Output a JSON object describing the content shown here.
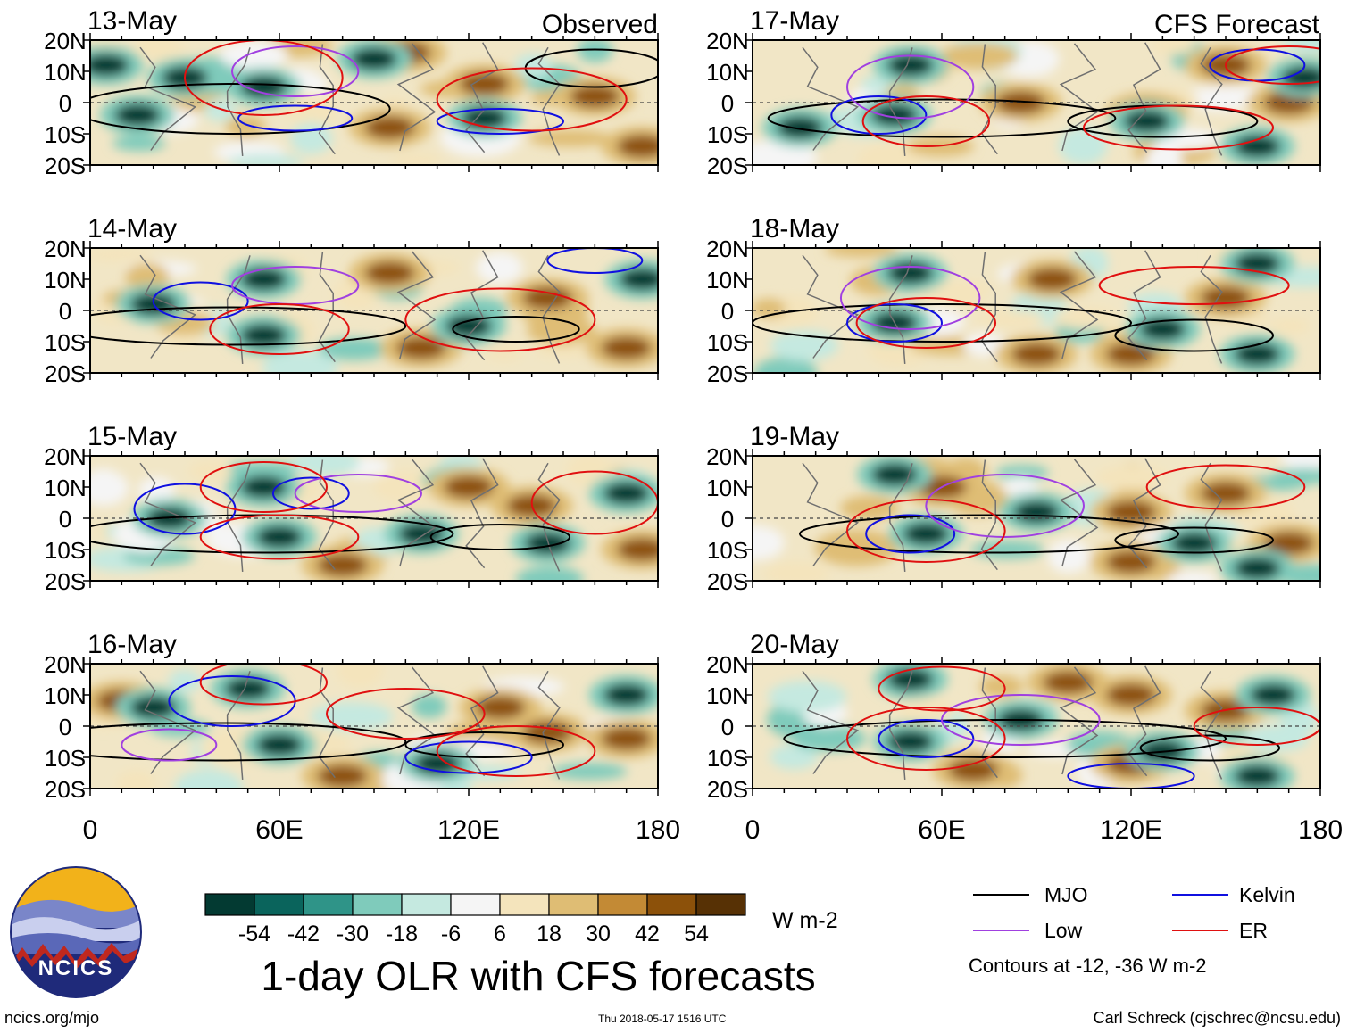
{
  "title": "1-day OLR with CFS forecasts",
  "column_headers": {
    "observed": "Observed",
    "forecast": "CFS Forecast"
  },
  "footer": {
    "site": "ncics.org/mjo",
    "timestamp": "Thu 2018-05-17 1516 UTC",
    "credit": "Carl Schreck (cjschrec@ncsu.edu)",
    "logo_text": "NCICS"
  },
  "colorbar": {
    "unit": "W m-2",
    "colors": [
      "#033a32",
      "#0a645c",
      "#2f9488",
      "#7fcbbb",
      "#c5e9e0",
      "#f5f5f5",
      "#f4e4bc",
      "#dfbd74",
      "#c38a35",
      "#8c510a",
      "#573105"
    ],
    "tick_labels": [
      "-54",
      "-42",
      "-30",
      "-18",
      "-6",
      "6",
      "18",
      "30",
      "42",
      "54"
    ]
  },
  "legend": {
    "entries": [
      {
        "label": "MJO",
        "color": "#000000"
      },
      {
        "label": "Kelvin",
        "color": "#1010e0"
      },
      {
        "label": "Low",
        "color": "#a040e0"
      },
      {
        "label": "ER",
        "color": "#e01010"
      }
    ],
    "note": "Contours at -12, -36 W m-2"
  },
  "chart_data": {
    "type": "heatmap",
    "variable": "OLR anomaly",
    "lon_range": [
      0,
      180
    ],
    "lat_range": [
      -20,
      20
    ],
    "x_tick_labels": [
      "0",
      "60E",
      "120E",
      "180"
    ],
    "y_tick_labels": [
      "20N",
      "10N",
      "0",
      "10S",
      "20S"
    ],
    "contour_levels": [
      -12,
      -36
    ],
    "panels": [
      {
        "date": "13-May",
        "column": "Observed",
        "wet": [
          [
            30,
            8
          ],
          [
            55,
            5
          ],
          [
            15,
            -4
          ],
          [
            125,
            -5
          ],
          [
            5,
            12
          ],
          [
            90,
            14
          ]
        ],
        "dry": [
          [
            95,
            -8
          ],
          [
            125,
            6
          ],
          [
            160,
            2
          ],
          [
            175,
            -14
          ],
          [
            100,
            16
          ]
        ],
        "mjo": [
          [
            45,
            -2,
            50,
            8
          ],
          [
            160,
            11,
            22,
            6
          ]
        ],
        "kelvin": [
          [
            65,
            -5,
            18,
            4
          ],
          [
            130,
            -6,
            20,
            4
          ]
        ],
        "low": [
          [
            65,
            10,
            20,
            8
          ]
        ],
        "er": [
          [
            55,
            8,
            25,
            12
          ],
          [
            140,
            1,
            30,
            10
          ]
        ]
      },
      {
        "date": "14-May",
        "column": "Observed",
        "wet": [
          [
            20,
            2
          ],
          [
            55,
            -8
          ],
          [
            55,
            10
          ],
          [
            120,
            -5
          ],
          [
            175,
            10
          ]
        ],
        "dry": [
          [
            95,
            12
          ],
          [
            145,
            4
          ],
          [
            105,
            -12
          ],
          [
            170,
            -12
          ]
        ],
        "mjo": [
          [
            45,
            -5,
            55,
            6
          ],
          [
            135,
            -6,
            20,
            4
          ]
        ],
        "kelvin": [
          [
            35,
            3,
            15,
            6
          ],
          [
            160,
            16,
            15,
            4
          ]
        ],
        "low": [
          [
            65,
            8,
            20,
            6
          ]
        ],
        "er": [
          [
            60,
            -6,
            22,
            8
          ],
          [
            130,
            -3,
            30,
            10
          ]
        ]
      },
      {
        "date": "15-May",
        "column": "Observed",
        "wet": [
          [
            25,
            0
          ],
          [
            55,
            10
          ],
          [
            105,
            -5
          ],
          [
            60,
            -6
          ],
          [
            170,
            8
          ],
          [
            145,
            -8
          ]
        ],
        "dry": [
          [
            120,
            10
          ],
          [
            140,
            4
          ],
          [
            80,
            -15
          ],
          [
            175,
            -10
          ]
        ],
        "mjo": [
          [
            55,
            -5,
            60,
            6
          ],
          [
            130,
            -6,
            22,
            4
          ]
        ],
        "kelvin": [
          [
            30,
            3,
            16,
            8
          ],
          [
            70,
            8,
            12,
            5
          ]
        ],
        "low": [
          [
            85,
            8,
            20,
            6
          ]
        ],
        "er": [
          [
            55,
            10,
            20,
            8
          ],
          [
            60,
            -6,
            25,
            7
          ],
          [
            160,
            5,
            20,
            10
          ]
        ]
      },
      {
        "date": "16-May",
        "column": "Observed",
        "wet": [
          [
            60,
            -6
          ],
          [
            50,
            12
          ],
          [
            20,
            6
          ],
          [
            110,
            -12
          ],
          [
            170,
            10
          ]
        ],
        "dry": [
          [
            10,
            8
          ],
          [
            130,
            6
          ],
          [
            145,
            -2
          ],
          [
            80,
            -16
          ],
          [
            170,
            -4
          ]
        ],
        "mjo": [
          [
            40,
            -5,
            60,
            6
          ],
          [
            125,
            -6,
            25,
            4
          ]
        ],
        "kelvin": [
          [
            45,
            8,
            20,
            8
          ],
          [
            120,
            -10,
            20,
            5
          ]
        ],
        "low": [
          [
            25,
            -6,
            15,
            5
          ]
        ],
        "er": [
          [
            55,
            14,
            20,
            7
          ],
          [
            100,
            4,
            25,
            8
          ],
          [
            135,
            -8,
            25,
            8
          ]
        ]
      },
      {
        "date": "17-May",
        "column": "CFS Forecast",
        "wet": [
          [
            45,
            -4
          ],
          [
            50,
            12
          ],
          [
            15,
            -8
          ],
          [
            125,
            -6
          ],
          [
            160,
            -14
          ],
          [
            175,
            8
          ]
        ],
        "dry": [
          [
            85,
            0
          ],
          [
            125,
            -3
          ],
          [
            150,
            12
          ],
          [
            170,
            0
          ]
        ],
        "mjo": [
          [
            60,
            -5,
            55,
            6
          ],
          [
            130,
            -6,
            30,
            5
          ]
        ],
        "kelvin": [
          [
            40,
            -4,
            15,
            6
          ],
          [
            160,
            12,
            15,
            5
          ]
        ],
        "low": [
          [
            50,
            5,
            20,
            10
          ]
        ],
        "er": [
          [
            55,
            -6,
            20,
            8
          ],
          [
            135,
            -8,
            30,
            7
          ],
          [
            170,
            12,
            20,
            6
          ]
        ]
      },
      {
        "date": "18-May",
        "column": "CFS Forecast",
        "wet": [
          [
            45,
            -4
          ],
          [
            50,
            12
          ],
          [
            130,
            -6
          ],
          [
            160,
            -14
          ],
          [
            160,
            15
          ]
        ],
        "dry": [
          [
            95,
            10
          ],
          [
            150,
            4
          ],
          [
            120,
            -14
          ],
          [
            90,
            -14
          ]
        ],
        "mjo": [
          [
            60,
            -4,
            60,
            6
          ],
          [
            140,
            -8,
            25,
            5
          ]
        ],
        "kelvin": [
          [
            45,
            -4,
            15,
            6
          ]
        ],
        "low": [
          [
            50,
            4,
            22,
            10
          ]
        ],
        "er": [
          [
            55,
            -4,
            22,
            8
          ],
          [
            140,
            8,
            30,
            6
          ]
        ]
      },
      {
        "date": "19-May",
        "column": "CFS Forecast",
        "wet": [
          [
            55,
            -5
          ],
          [
            90,
            2
          ],
          [
            140,
            -8
          ],
          [
            160,
            -16
          ],
          [
            45,
            14
          ]
        ],
        "dry": [
          [
            120,
            2
          ],
          [
            150,
            8
          ],
          [
            170,
            -8
          ],
          [
            60,
            10
          ],
          [
            120,
            -14
          ]
        ],
        "mjo": [
          [
            75,
            -5,
            60,
            6
          ],
          [
            140,
            -7,
            25,
            4
          ]
        ],
        "kelvin": [
          [
            50,
            -5,
            14,
            6
          ]
        ],
        "low": [
          [
            80,
            4,
            25,
            10
          ]
        ],
        "er": [
          [
            55,
            -4,
            25,
            10
          ],
          [
            150,
            10,
            25,
            7
          ]
        ]
      },
      {
        "date": "20-May",
        "column": "CFS Forecast",
        "wet": [
          [
            50,
            -5
          ],
          [
            85,
            2
          ],
          [
            130,
            -8
          ],
          [
            160,
            -16
          ],
          [
            50,
            15
          ],
          [
            165,
            10
          ]
        ],
        "dry": [
          [
            120,
            10
          ],
          [
            150,
            5
          ],
          [
            70,
            -14
          ],
          [
            120,
            -12
          ],
          [
            100,
            14
          ]
        ],
        "mjo": [
          [
            80,
            -4,
            70,
            6
          ],
          [
            145,
            -7,
            22,
            4
          ]
        ],
        "kelvin": [
          [
            55,
            -4,
            15,
            6
          ],
          [
            120,
            -16,
            20,
            4
          ]
        ],
        "low": [
          [
            85,
            2,
            25,
            8
          ]
        ],
        "er": [
          [
            55,
            -4,
            25,
            10
          ],
          [
            60,
            12,
            20,
            7
          ],
          [
            160,
            0,
            20,
            6
          ]
        ]
      }
    ]
  }
}
